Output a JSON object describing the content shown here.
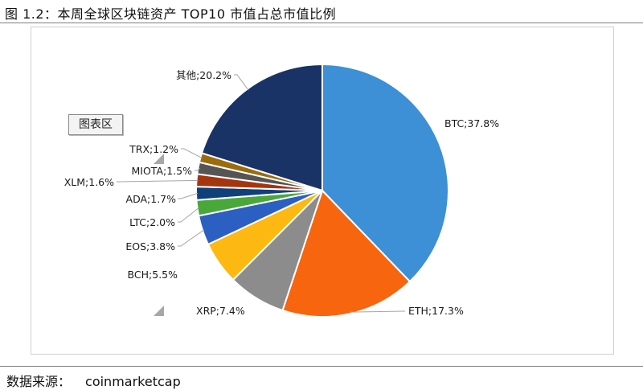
{
  "title": "图 1.2：本周全球区块链资产 TOP10 市值占总市值比例",
  "chart_area_label": "图表区",
  "source": {
    "label": "数据来源：",
    "value": "coinmarketcap"
  },
  "chart_data": {
    "type": "pie",
    "slices": [
      {
        "name": "BTC",
        "value": 37.8,
        "label": "BTC;37.8%",
        "color": "#3d8fd6"
      },
      {
        "name": "ETH",
        "value": 17.3,
        "label": "ETH;17.3%",
        "color": "#f7650f"
      },
      {
        "name": "XRP",
        "value": 7.4,
        "label": "XRP;7.4%",
        "color": "#8c8c8c"
      },
      {
        "name": "BCH",
        "value": 5.5,
        "label": "BCH;5.5%",
        "color": "#fdb812"
      },
      {
        "name": "EOS",
        "value": 3.8,
        "label": "EOS;3.8%",
        "color": "#2c5fc2"
      },
      {
        "name": "LTC",
        "value": 2.0,
        "label": "LTC;2.0%",
        "color": "#4aa83a"
      },
      {
        "name": "ADA",
        "value": 1.7,
        "label": "ADA;1.7%",
        "color": "#10407a"
      },
      {
        "name": "XLM",
        "value": 1.6,
        "label": "XLM;1.6%",
        "color": "#a4360f"
      },
      {
        "name": "MIOTA",
        "value": 1.5,
        "label": "MIOTA;1.5%",
        "color": "#555555"
      },
      {
        "name": "TRX",
        "value": 1.2,
        "label": "TRX;1.2%",
        "color": "#9c6b0a"
      },
      {
        "name": "其他",
        "value": 20.2,
        "label": "其他;20.2%",
        "color": "#1a3366"
      }
    ]
  }
}
